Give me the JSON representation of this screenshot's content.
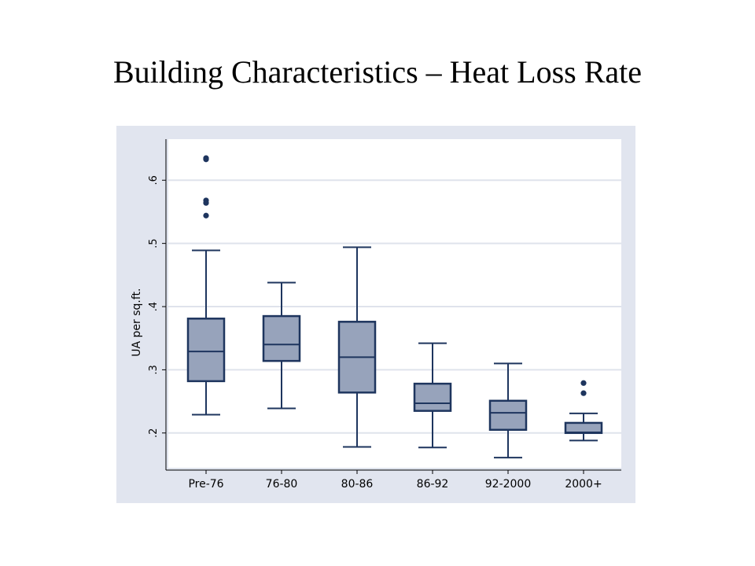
{
  "slide": {
    "title": "Building Characteristics – Heat Loss Rate"
  },
  "chart_data": {
    "type": "box",
    "title": "",
    "ylabel": "UA per sq.ft.",
    "xlabel": "",
    "ylim": [
      0.145,
      0.665
    ],
    "yticks": [
      0.2,
      0.3,
      0.4,
      0.5,
      0.6
    ],
    "ytick_labels": [
      ".2",
      ".3",
      ".4",
      ".5",
      ".6"
    ],
    "grid": true,
    "categories": [
      "Pre-76",
      "76-80",
      "80-86",
      "86-92",
      "92-2000",
      "2000+"
    ],
    "boxes": [
      {
        "whisker_low": 0.229,
        "q1": 0.282,
        "median": 0.329,
        "q3": 0.381,
        "whisker_high": 0.489,
        "outliers": [
          0.544,
          0.564,
          0.568,
          0.633,
          0.635
        ]
      },
      {
        "whisker_low": 0.239,
        "q1": 0.314,
        "median": 0.34,
        "q3": 0.385,
        "whisker_high": 0.438,
        "outliers": []
      },
      {
        "whisker_low": 0.178,
        "q1": 0.264,
        "median": 0.32,
        "q3": 0.376,
        "whisker_high": 0.494,
        "outliers": []
      },
      {
        "whisker_low": 0.177,
        "q1": 0.235,
        "median": 0.247,
        "q3": 0.278,
        "whisker_high": 0.342,
        "outliers": []
      },
      {
        "whisker_low": 0.161,
        "q1": 0.205,
        "median": 0.232,
        "q3": 0.251,
        "whisker_high": 0.31,
        "outliers": []
      },
      {
        "whisker_low": 0.188,
        "q1": 0.2,
        "median": 0.201,
        "q3": 0.216,
        "whisker_high": 0.231,
        "outliers": [
          0.263,
          0.279
        ]
      }
    ],
    "colors": {
      "background": "#e1e5ef",
      "plot_area": "#ffffff",
      "box_fill": "#97a3bb",
      "box_line": "#1e355e",
      "gridline": "#dfe3ec",
      "text": "#000000"
    }
  }
}
